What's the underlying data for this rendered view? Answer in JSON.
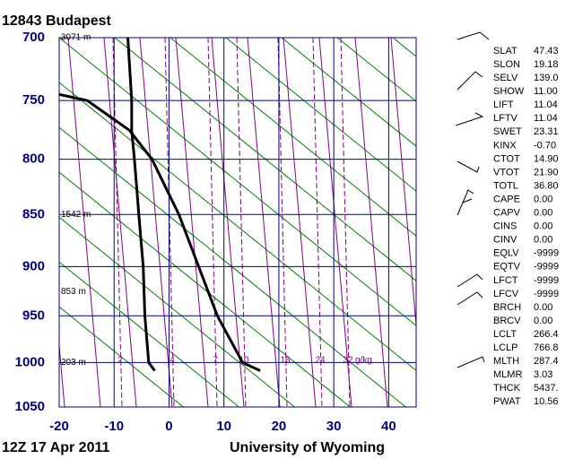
{
  "chart_data": {
    "type": "skewt",
    "title": "12843  Budapest",
    "footer_left": "12Z 17 Apr 2011",
    "footer_right": "University of Wyoming",
    "xlim": [
      -20,
      45
    ],
    "xticks": [
      -20,
      -10,
      0,
      10,
      20,
      30,
      40
    ],
    "ylim": [
      1050,
      700
    ],
    "yticks": [
      700,
      750,
      800,
      850,
      900,
      950,
      1000,
      1050
    ],
    "log_y": true,
    "grid": true,
    "series": [
      {
        "color": "#000000",
        "x": [
          16.6,
          13.4,
          8.8,
          5.4,
          1.8,
          -3.1,
          -7.2,
          -14.9,
          -20
        ],
        "values": [
          1009,
          1000,
          950,
          900,
          850,
          800,
          775,
          750,
          745
        ]
      },
      {
        "color": "#000000",
        "x": [
          -2.6,
          -3.7,
          -4.4,
          -4.7,
          -5.5,
          -6.3,
          -6.8,
          -6.8,
          -7.5
        ],
        "values": [
          1009,
          1000,
          950,
          900,
          850,
          800,
          775,
          750,
          700
        ]
      }
    ],
    "height_labels": [
      {
        "pressure": 700,
        "label": "3071 m"
      },
      {
        "pressure": 850,
        "label": "1542 m"
      },
      {
        "pressure": 925,
        "label": "853 m"
      },
      {
        "pressure": 1000,
        "label": "203 m"
      }
    ],
    "mixing_ratio_labels": [
      2,
      4,
      7,
      10,
      16,
      24,
      32
    ],
    "mixing_ratio_unit": "g/kg",
    "indices": [
      [
        "SLAT",
        "47.43"
      ],
      [
        "SLON",
        "19.18"
      ],
      [
        "SELV",
        "139.0"
      ],
      [
        "SHOW",
        "11.00"
      ],
      [
        "LIFT",
        "11.04"
      ],
      [
        "LFTV",
        "11.04"
      ],
      [
        "SWET",
        "23.31"
      ],
      [
        "KINX",
        "-0.70"
      ],
      [
        "CTOT",
        "14.90"
      ],
      [
        "VTOT",
        "21.90"
      ],
      [
        "TOTL",
        "36.80"
      ],
      [
        "CAPE",
        "0.00"
      ],
      [
        "CAPV",
        "0.00"
      ],
      [
        "CINS",
        "0.00"
      ],
      [
        "CINV",
        "0.00"
      ],
      [
        "EQLV",
        "-9999"
      ],
      [
        "EQTV",
        "-9999"
      ],
      [
        "LFCT",
        "-9999"
      ],
      [
        "LFCV",
        "-9999"
      ],
      [
        "BRCH",
        "0.00"
      ],
      [
        "BRCV",
        "0.00"
      ],
      [
        "LCLT",
        "266.4"
      ],
      [
        "LCLP",
        "766.8"
      ],
      [
        "MLTH",
        "287.4"
      ],
      [
        "MLMR",
        "3.03"
      ],
      [
        "THCK",
        "5437."
      ],
      [
        "PWAT",
        "10.56"
      ]
    ]
  }
}
